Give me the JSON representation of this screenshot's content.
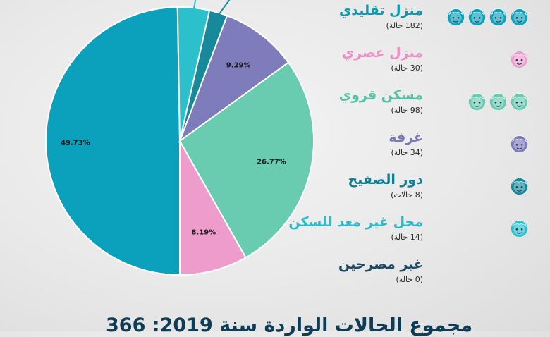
{
  "chart_data": {
    "type": "pie",
    "slices": [
      {
        "label": "منزل تقليدي",
        "count_label": "(182 حالة)",
        "value": 49.73,
        "value_label": "49.73%",
        "color": "#0ba0bb",
        "icon_count": 4
      },
      {
        "label": "منزل عصري",
        "count_label": "(30 حالة)",
        "value": 8.19,
        "value_label": "8.19%",
        "color": "#ee9ccc",
        "icon_count": 1
      },
      {
        "label": "مسكن قروي",
        "count_label": "(98 حالة)",
        "value": 26.77,
        "value_label": "26.77%",
        "color": "#69cbb0",
        "icon_count": 3
      },
      {
        "label": "غرفة",
        "count_label": "(34 حالة)",
        "value": 9.29,
        "value_label": "9.29%",
        "color": "#7f7cbc",
        "icon_count": 1
      },
      {
        "label": "دور الصفيح",
        "count_label": "(8 حالات)",
        "value": 2.19,
        "value_label": "",
        "color": "#18899b",
        "icon_count": 1
      },
      {
        "label": "محل غير معد للسكن",
        "count_label": "(14 حالة)",
        "value": 3.83,
        "value_label": "",
        "color": "#2cbfcc",
        "icon_count": 1
      },
      {
        "label": "غير مصرحين",
        "count_label": "(0 حالة)",
        "value": 0,
        "value_label": "",
        "color": "#1b4a66",
        "icon_count": 0
      }
    ]
  },
  "footer": "مجموع الحالات الواردة سنة 2019: 366"
}
